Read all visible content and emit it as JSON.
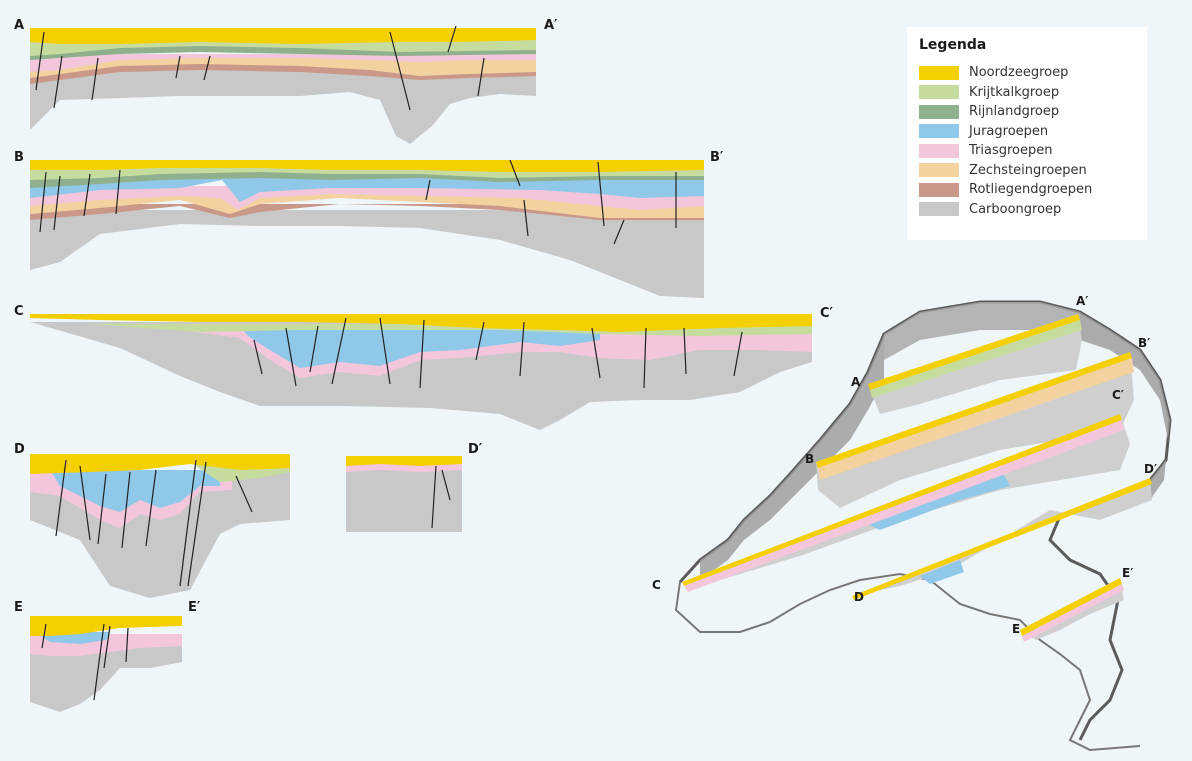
{
  "legend": {
    "title": "Legenda",
    "items": [
      {
        "label": "Noordzeegroep",
        "color": "#f5d000"
      },
      {
        "label": "Krijtkalkgroep",
        "color": "#c6dc9e"
      },
      {
        "label": "Rijnlandgroep",
        "color": "#8fb08c"
      },
      {
        "label": "Juragroepen",
        "color": "#8fc8e8"
      },
      {
        "label": "Triasgroepen",
        "color": "#f3c6dc"
      },
      {
        "label": "Zechsteingroepen",
        "color": "#f3d2a0"
      },
      {
        "label": "Rotliegendgroepen",
        "color": "#c99888"
      },
      {
        "label": "Carboongroep",
        "color": "#c8c8c8"
      }
    ]
  },
  "sections": [
    {
      "start": "A",
      "end": "A′"
    },
    {
      "start": "B",
      "end": "B′"
    },
    {
      "start": "C",
      "end": "C′"
    },
    {
      "start": "D",
      "end": "D′"
    },
    {
      "start": "E",
      "end": "E′"
    }
  ],
  "map_labels": {
    "A": "A",
    "A_end": "A′",
    "B": "B",
    "B_end": "B′",
    "C": "C",
    "C_end": "C′",
    "D": "D",
    "D_end": "D′",
    "E": "E",
    "E_end": "E′"
  }
}
